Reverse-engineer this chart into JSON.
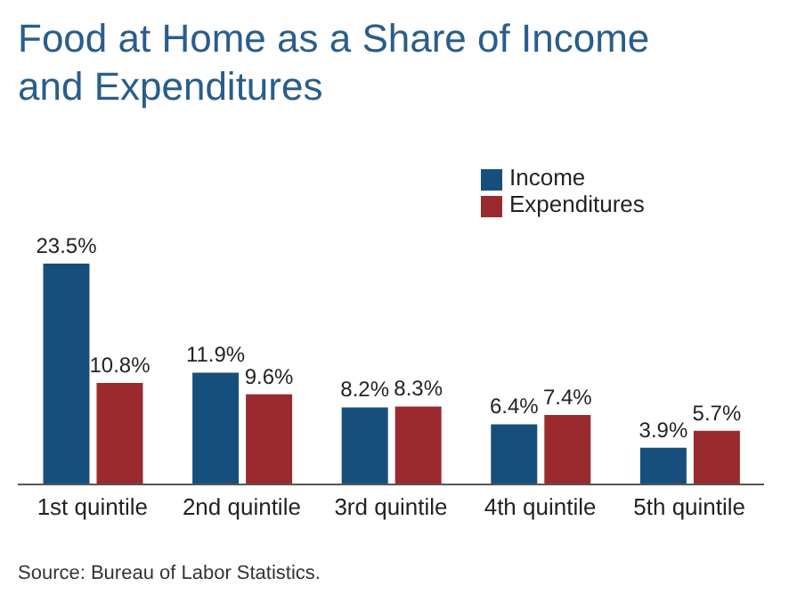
{
  "chart_data": {
    "type": "bar",
    "title": "Food at Home as a Share of Income and Expenditures",
    "categories": [
      "1st quintile",
      "2nd quintile",
      "3rd quintile",
      "4th quintile",
      "5th quintile"
    ],
    "series": [
      {
        "name": "Income",
        "color": "#174f7c",
        "values": [
          23.5,
          11.9,
          8.2,
          6.4,
          3.9
        ],
        "value_labels": [
          "23.5%",
          "11.9%",
          "8.2%",
          "6.4%",
          "3.9%"
        ]
      },
      {
        "name": "Expenditures",
        "color": "#9b2a2f",
        "values": [
          10.8,
          9.6,
          8.3,
          7.4,
          5.7
        ],
        "value_labels": [
          "10.8%",
          "9.6%",
          "8.3%",
          "7.4%",
          "5.7%"
        ]
      }
    ],
    "legend": "top right",
    "grid": false,
    "annotations": [
      "Source: Bureau of Labor Statistics."
    ]
  }
}
